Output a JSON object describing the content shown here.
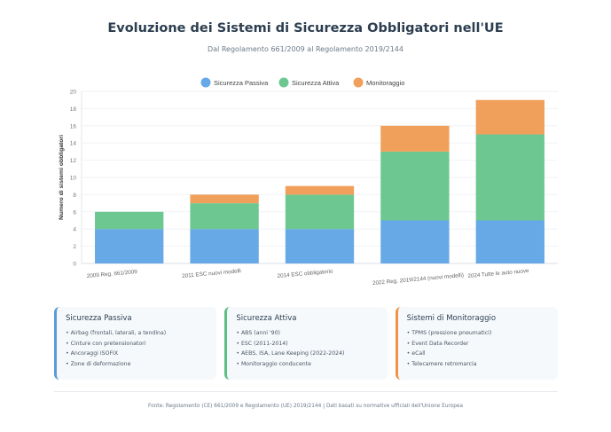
{
  "header": {
    "title": "Evoluzione dei Sistemi di Sicurezza Obbligatori nell'UE",
    "subtitle": "Dal Regolamento 661/2009 al Regolamento 2019/2144"
  },
  "chart_data": {
    "type": "bar",
    "stacked": true,
    "categories": [
      "2009 Reg. 661/2009",
      "2011 ESC nuovi modelli",
      "2014 ESC obbligatorio",
      "2022 Reg. 2019/2144 (nuovi modelli)",
      "2024 Tutte le auto nuove"
    ],
    "series": [
      {
        "name": "Sicurezza Passiva",
        "color": "#66a9e6",
        "values": [
          4,
          4,
          4,
          5,
          5
        ]
      },
      {
        "name": "Sicurezza Attiva",
        "color": "#6cc890",
        "values": [
          2,
          3,
          4,
          8,
          10
        ]
      },
      {
        "name": "Monitoraggio",
        "color": "#f0a05a",
        "values": [
          0,
          1,
          1,
          3,
          4
        ]
      }
    ],
    "ylabel": "Numero di sistemi obbligatori",
    "xlabel": "",
    "ylim": [
      0,
      20
    ],
    "yticks": [
      0,
      2,
      4,
      6,
      8,
      10,
      12,
      14,
      16,
      18,
      20
    ],
    "grid": true,
    "legend": "top-center"
  },
  "cards": [
    {
      "title": "Sicurezza Passiva",
      "color": "#5b9bd5",
      "items": [
        "Airbag (frontali, laterali, a tendina)",
        "Cinture con pretensionatori",
        "Ancoraggi ISOFIX",
        "Zone di deformazione"
      ]
    },
    {
      "title": "Sicurezza Attiva",
      "color": "#5cbf83",
      "items": [
        "ABS (anni '90)",
        "ESC (2011-2014)",
        "AEBS, ISA, Lane Keeping (2022-2024)",
        "Monitoraggio conducente"
      ]
    },
    {
      "title": "Sistemi di Monitoraggio",
      "color": "#ec9548",
      "items": [
        "TPMS (pressione pneumatici)",
        "Event Data Recorder",
        "eCall",
        "Telecamere retromarcia"
      ]
    }
  ],
  "footer": "Fonte: Regolamento (CE) 661/2009 e Regolamento (UE) 2019/2144 | Dati basati su normative ufficiali dell'Unione Europea"
}
